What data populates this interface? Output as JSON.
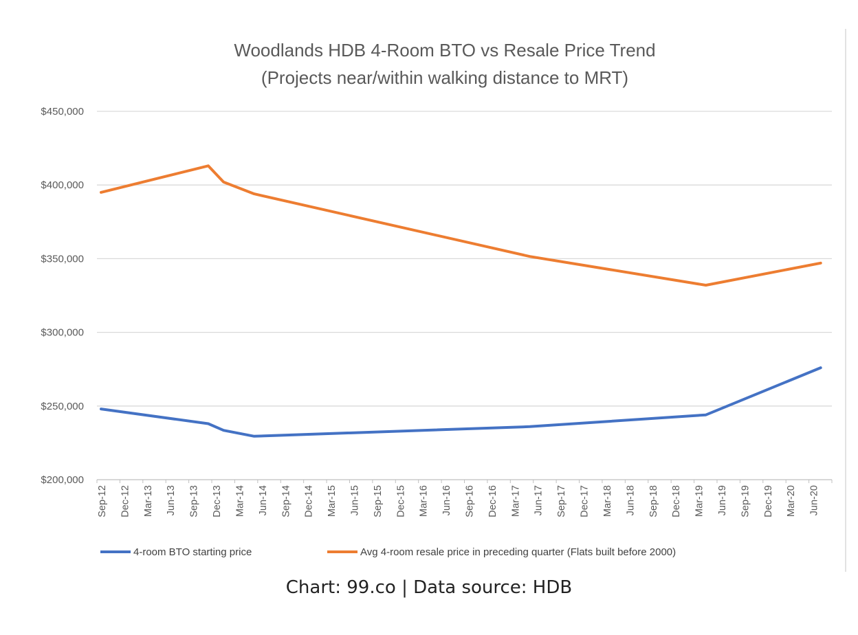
{
  "chart_data": {
    "type": "line",
    "title": [
      "Woodlands HDB 4-Room BTO vs Resale Price Trend",
      "(Projects near/within walking distance to MRT)"
    ],
    "xlabel": "",
    "ylabel": "",
    "ylim": [
      200000,
      450000
    ],
    "yticks": [
      200000,
      250000,
      300000,
      350000,
      400000,
      450000
    ],
    "ytick_labels": [
      "$200,000",
      "$250,000",
      "$300,000",
      "$350,000",
      "$400,000",
      "$450,000"
    ],
    "x_tick_labels": [
      "Sep-12",
      "Dec-12",
      "Mar-13",
      "Jun-13",
      "Sep-13",
      "Dec-13",
      "Mar-14",
      "Jun-14",
      "Sep-14",
      "Dec-14",
      "Mar-15",
      "Jun-15",
      "Sep-15",
      "Dec-15",
      "Mar-16",
      "Jun-16",
      "Sep-16",
      "Dec-16",
      "Mar-17",
      "Jun-17",
      "Sep-17",
      "Dec-17",
      "Mar-18",
      "Jun-18",
      "Sep-18",
      "Dec-18",
      "Mar-19",
      "Jun-19",
      "Sep-19",
      "Dec-19",
      "Mar-20",
      "Jun-20"
    ],
    "x_months_since_sep12": [
      0,
      14,
      16,
      20,
      56,
      79,
      94
    ],
    "x": [
      "Sep-12",
      "Nov-13",
      "Jan-14",
      "May-14",
      "May-17",
      "Apr-19",
      "Jul-20"
    ],
    "series": [
      {
        "name": "4-room BTO starting price",
        "color": "#4472C4",
        "values": [
          248000,
          238000,
          233500,
          229500,
          236000,
          244000,
          276000
        ]
      },
      {
        "name": "Avg 4-room resale price in preceding quarter (Flats built before 2000)",
        "color": "#ED7D31",
        "values": [
          395000,
          413000,
          402000,
          394000,
          351500,
          332000,
          347000
        ]
      }
    ],
    "grid": true,
    "legend_position": "bottom"
  },
  "caption": "Chart: 99.co | Data source: HDB"
}
